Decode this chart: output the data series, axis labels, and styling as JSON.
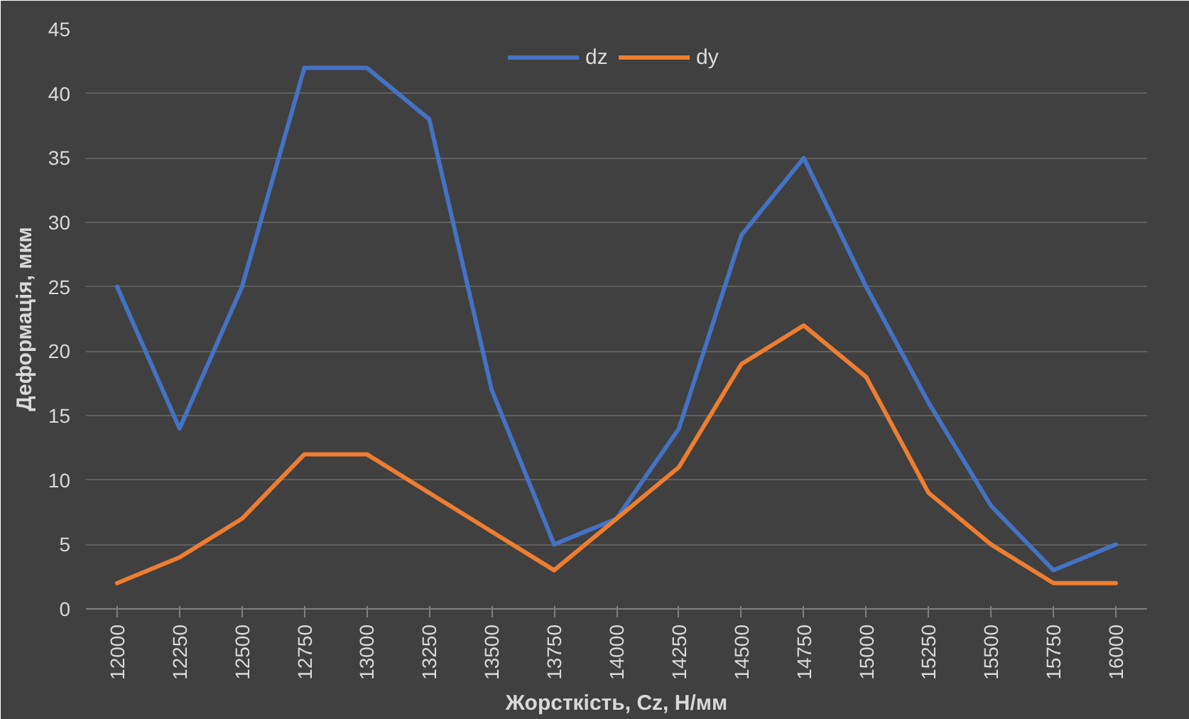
{
  "chart_data": {
    "type": "line",
    "xlabel": "Жорсткість, Cz, Н/мм",
    "ylabel": "Деформація, мкм",
    "categories": [
      "12000",
      "12250",
      "12500",
      "12750",
      "13000",
      "13250",
      "13500",
      "13750",
      "14000",
      "14250",
      "14500",
      "14750",
      "15000",
      "15250",
      "15500",
      "15750",
      "16000"
    ],
    "series": [
      {
        "name": "dz",
        "color": "#4472c4",
        "values": [
          25,
          14,
          25,
          42,
          42,
          38,
          17,
          5,
          7,
          14,
          29,
          35,
          25,
          16,
          8,
          3,
          5
        ]
      },
      {
        "name": "dy",
        "color": "#ed7d31",
        "values": [
          2,
          4,
          7,
          12,
          12,
          9,
          6,
          3,
          7,
          11,
          19,
          22,
          18,
          9,
          5,
          2,
          2
        ]
      }
    ],
    "ylim": [
      0,
      45
    ],
    "yticks": [
      0,
      5,
      10,
      15,
      20,
      25,
      30,
      35,
      40,
      45
    ],
    "grid": "y",
    "legend": "top",
    "marker": "none",
    "line_style": "solid"
  }
}
